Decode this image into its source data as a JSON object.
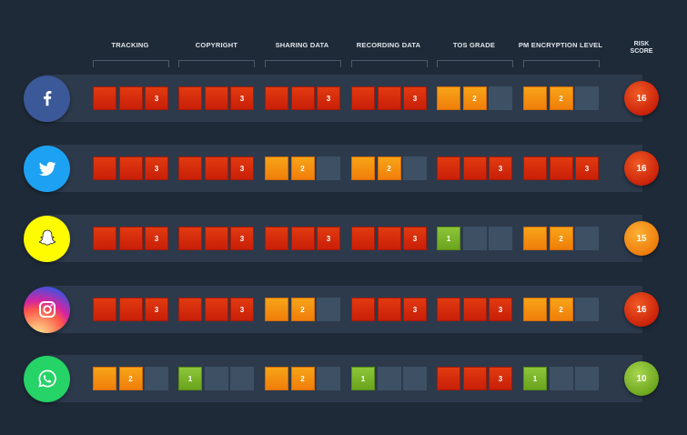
{
  "columns": [
    {
      "key": "tracking",
      "label": "TRACKING"
    },
    {
      "key": "copyright",
      "label": "COPYRIGHT"
    },
    {
      "key": "sharing_data",
      "label": "SHARING DATA"
    },
    {
      "key": "recording_data",
      "label": "RECORDING DATA"
    },
    {
      "key": "tos_grade",
      "label": "TOS GRADE"
    },
    {
      "key": "pm_encryption_level",
      "label": "PM ENCRYPTION LEVEL"
    }
  ],
  "risk_header": "RISK\nSCORE",
  "colors": {
    "red": "#d32a0c",
    "orange": "#f39012",
    "green": "#7bb52a",
    "empty": "#3e5064",
    "background": "#1f2a38",
    "row": "#2c3a4c"
  },
  "apps": [
    {
      "icon": "facebook-icon",
      "icon_bg": "#3b5998",
      "ratings": [
        3,
        3,
        3,
        3,
        2,
        2
      ],
      "ratings_color": [
        "red",
        "red",
        "red",
        "red",
        "orange",
        "orange"
      ],
      "risk_score": "16",
      "risk_color": "red"
    },
    {
      "icon": "twitter-icon",
      "icon_bg": "#1da1f2",
      "ratings": [
        3,
        3,
        2,
        2,
        3,
        3
      ],
      "ratings_color": [
        "red",
        "red",
        "orange",
        "orange",
        "red",
        "red"
      ],
      "risk_score": "16",
      "risk_color": "red"
    },
    {
      "icon": "snapchat-icon",
      "icon_bg": "#fffc00",
      "ratings": [
        3,
        3,
        3,
        3,
        1,
        2
      ],
      "ratings_color": [
        "red",
        "red",
        "red",
        "red",
        "green",
        "orange"
      ],
      "risk_score": "15",
      "risk_color": "orange"
    },
    {
      "icon": "instagram-icon",
      "icon_bg": "#c13584",
      "ratings": [
        3,
        3,
        2,
        3,
        3,
        2
      ],
      "ratings_color": [
        "red",
        "red",
        "orange",
        "red",
        "red",
        "orange"
      ],
      "risk_score": "16",
      "risk_color": "red"
    },
    {
      "icon": "whatsapp-icon",
      "icon_bg": "#25d366",
      "ratings": [
        2,
        1,
        2,
        1,
        3,
        1
      ],
      "ratings_color": [
        "orange",
        "green",
        "orange",
        "green",
        "red",
        "green"
      ],
      "risk_score": "10",
      "risk_color": "green"
    }
  ]
}
